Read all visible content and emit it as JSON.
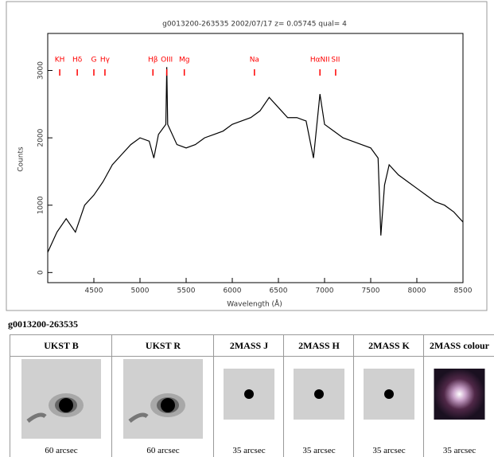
{
  "chart_data": {
    "type": "line",
    "title": "g0013200-263535 2002/07/17 z= 0.05745 qual= 4",
    "x_label": "Wavelength (Å)",
    "y_label": "Counts",
    "x": [
      4000,
      4100,
      4200,
      4300,
      4400,
      4500,
      4600,
      4700,
      4800,
      4900,
      5000,
      5100,
      5150,
      5200,
      5280,
      5290,
      5300,
      5400,
      5500,
      5600,
      5700,
      5800,
      5900,
      6000,
      6100,
      6200,
      6300,
      6400,
      6500,
      6600,
      6700,
      6800,
      6880,
      6950,
      7000,
      7100,
      7200,
      7300,
      7400,
      7500,
      7580,
      7610,
      7650,
      7700,
      7800,
      7900,
      8000,
      8100,
      8200,
      8300,
      8400,
      8500
    ],
    "series": [
      {
        "color": "#000000",
        "values": [
          300,
          600,
          800,
          600,
          1000,
          1150,
          1350,
          1600,
          1750,
          1900,
          2000,
          1950,
          1700,
          2050,
          2200,
          3050,
          2200,
          1900,
          1850,
          1900,
          2000,
          2050,
          2100,
          2200,
          2250,
          2300,
          2400,
          2600,
          2450,
          2300,
          2300,
          2250,
          1700,
          2650,
          2200,
          2100,
          2000,
          1950,
          1900,
          1850,
          1700,
          550,
          1300,
          1600,
          1450,
          1350,
          1250,
          1150,
          1050,
          1000,
          900,
          750
        ]
      }
    ],
    "xlim": [
      4000,
      8500
    ],
    "ylim": [
      -150,
      3550
    ],
    "xticks": [
      4500,
      5000,
      5500,
      6000,
      6500,
      7000,
      7500,
      8000,
      8500
    ],
    "yticks": [
      0,
      1000,
      2000,
      3000
    ],
    "annotation_color": "#ff0000",
    "annotations": [
      {
        "text": "KH",
        "x": 4130
      },
      {
        "text": "Hδ",
        "x": 4320
      },
      {
        "text": "G",
        "x": 4500
      },
      {
        "text": "Hγ",
        "x": 4620
      },
      {
        "text": "Hβ",
        "x": 5140
      },
      {
        "text": "OIII",
        "x": 5290
      },
      {
        "text": "Mg",
        "x": 5480
      },
      {
        "text": "Na",
        "x": 6240
      },
      {
        "text": "HαNII",
        "x": 6950
      },
      {
        "text": "SII",
        "x": 7120
      }
    ]
  },
  "table": {
    "title": "g0013200-263535",
    "header": [
      "UKST B",
      "UKST R",
      "2MASS J",
      "2MASS H",
      "2MASS K",
      "2MASS colour"
    ],
    "captions": [
      "60 arcsec",
      "60 arcsec",
      "35 arcsec",
      "35 arcsec",
      "35 arcsec",
      "35 arcsec"
    ]
  }
}
